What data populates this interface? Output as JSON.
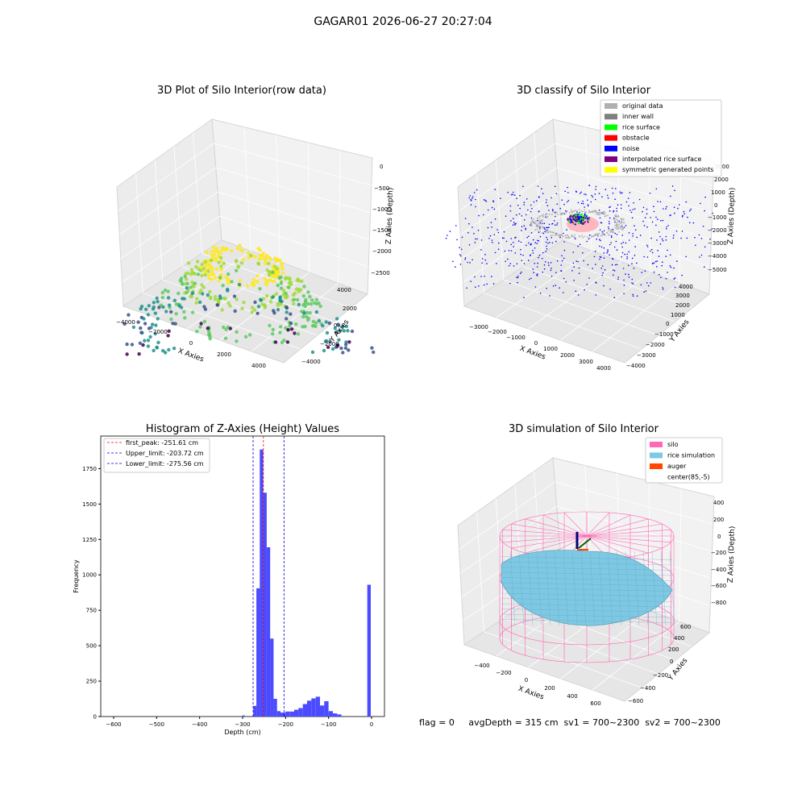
{
  "figure_title": "GAGAR01 2026-06-27 20:27:04",
  "colors": {
    "axis_gray": "#f2f2f2",
    "axis_gray_dark": "#e6e6e6",
    "hist_bar": "#4b4bff",
    "peak_line": "#ff0000",
    "limit_line": "#0000cc",
    "silo": "#ff69b4",
    "rice": "#7ec8e3",
    "auger": "#ff4500"
  },
  "panel1": {
    "title": "3D Plot of Silo Interior(row data)",
    "xlabel": "X Axies",
    "ylabel": "Y Axies",
    "zlabel": "Z Axies (Depth)",
    "xticks": [
      "−4000",
      "−2000",
      "0",
      "2000",
      "4000"
    ],
    "yticks": [
      "−4000",
      "−2000",
      "0",
      "2000",
      "4000"
    ],
    "zticks": [
      "0",
      "−500",
      "−1000",
      "−1500",
      "−2000",
      "−2500"
    ]
  },
  "panel2": {
    "title": "3D classify of Silo Interior",
    "xlabel": "X Axies",
    "ylabel": "Y Axies",
    "zlabel": "Z Axies (Depth)",
    "xticks": [
      "−3000",
      "−2000",
      "−1000",
      "0",
      "1000",
      "2000",
      "3000",
      "4000"
    ],
    "yticks": [
      "−4000",
      "−3000",
      "−2000",
      "−1000",
      "0",
      "1000",
      "2000",
      "3000",
      "4000"
    ],
    "zticks": [
      "3000",
      "2000",
      "1000",
      "0",
      "−1000",
      "−2000",
      "−3000",
      "−4000",
      "−5000"
    ],
    "legend": [
      {
        "label": "original data",
        "color": "#b0b0b0"
      },
      {
        "label": "inner wall",
        "color": "#808080"
      },
      {
        "label": "rice surface",
        "color": "#00ff00"
      },
      {
        "label": "obstacle",
        "color": "#ff0000"
      },
      {
        "label": "noise",
        "color": "#0000ff"
      },
      {
        "label": "interpolated rice surface",
        "color": "#800080"
      },
      {
        "label": "symmetric generated points",
        "color": "#ffff00"
      }
    ]
  },
  "panel3": {
    "title": "3D simulation of Silo Interior",
    "xlabel": "X Axies",
    "ylabel": "Y Axies",
    "zlabel": "Z Axies (Depth)",
    "xticks": [
      "−400",
      "−200",
      "0",
      "200",
      "400",
      "600"
    ],
    "yticks": [
      "−600",
      "−400",
      "−200",
      "0",
      "200",
      "400",
      "600"
    ],
    "zticks": [
      "400",
      "200",
      "0",
      "−200",
      "−400",
      "−600",
      "−800"
    ],
    "legend": [
      {
        "label": "silo",
        "color": "#ff69b4"
      },
      {
        "label": "rice simulation",
        "color": "#7ec8e3"
      },
      {
        "label": "auger",
        "color": "#ff4500"
      },
      {
        "label": "center(85,-5)",
        "color": "none"
      }
    ]
  },
  "status_line": "flag = 0     avgDepth = 315 cm  sv1 = 700~2300  sv2 = 700~2300",
  "chart_data": [
    {
      "type": "scatter",
      "title": "3D Plot of Silo Interior(row data)",
      "xlabel": "X Axies",
      "ylabel": "Y Axies",
      "zlabel": "Z Axies (Depth)",
      "xlim": [
        -4000,
        4000
      ],
      "ylim": [
        -4000,
        4000
      ],
      "zlim": [
        -2700,
        0
      ],
      "colormap": "viridis (by depth)"
    },
    {
      "type": "scatter",
      "title": "3D classify of Silo Interior",
      "xlabel": "X Axies",
      "ylabel": "Y Axies",
      "zlabel": "Z Axies (Depth)",
      "xlim": [
        -3000,
        4000
      ],
      "ylim": [
        -4000,
        4000
      ],
      "zlim": [
        -5000,
        3000
      ],
      "series": [
        {
          "name": "original data"
        },
        {
          "name": "inner wall"
        },
        {
          "name": "rice surface"
        },
        {
          "name": "obstacle"
        },
        {
          "name": "noise"
        },
        {
          "name": "interpolated rice surface"
        },
        {
          "name": "symmetric generated points"
        }
      ],
      "legend_position": "top-right"
    },
    {
      "type": "bar",
      "title": "Histogram of Z-Axies (Height) Values",
      "xlabel": "Depth (cm)",
      "ylabel": "Frequency",
      "xlim": [
        -630,
        30
      ],
      "ylim": [
        0,
        1980
      ],
      "xticks": [
        -600,
        -500,
        -400,
        -300,
        -200,
        -100,
        0
      ],
      "yticks": [
        0,
        250,
        500,
        750,
        1000,
        1250,
        1500,
        1750
      ],
      "bin_width": 10,
      "bins": [
        {
          "x0": -300,
          "value": 8
        },
        {
          "x0": -290,
          "value": 0
        },
        {
          "x0": -280,
          "value": 75
        },
        {
          "x0": -270,
          "value": 905
        },
        {
          "x0": -260,
          "value": 1885
        },
        {
          "x0": -250,
          "value": 1580
        },
        {
          "x0": -240,
          "value": 1195
        },
        {
          "x0": -230,
          "value": 550
        },
        {
          "x0": -220,
          "value": 125
        },
        {
          "x0": -210,
          "value": 38
        },
        {
          "x0": -200,
          "value": 28
        },
        {
          "x0": -190,
          "value": 35
        },
        {
          "x0": -180,
          "value": 35
        },
        {
          "x0": -170,
          "value": 48
        },
        {
          "x0": -160,
          "value": 60
        },
        {
          "x0": -150,
          "value": 88
        },
        {
          "x0": -140,
          "value": 112
        },
        {
          "x0": -130,
          "value": 128
        },
        {
          "x0": -120,
          "value": 140
        },
        {
          "x0": -110,
          "value": 78
        },
        {
          "x0": -100,
          "value": 108
        },
        {
          "x0": -90,
          "value": 38
        },
        {
          "x0": -80,
          "value": 22
        },
        {
          "x0": -70,
          "value": 15
        },
        {
          "x0": -60,
          "value": 930
        }
      ],
      "lines": [
        {
          "name": "first_peak: -251.61 cm",
          "x": -251.61,
          "color": "#ff0000"
        },
        {
          "name": "Upper_limit: -203.72 cm",
          "x": -203.72,
          "color": "#0000cc"
        },
        {
          "name": "Lower_limit: -275.56 cm",
          "x": -275.56,
          "color": "#0000cc"
        }
      ],
      "legend_position": "top-left"
    },
    {
      "type": "surface",
      "title": "3D simulation of Silo Interior",
      "xlabel": "X Axies",
      "ylabel": "Y Axies",
      "zlabel": "Z Axies (Depth)",
      "xlim": [
        -500,
        700
      ],
      "ylim": [
        -700,
        700
      ],
      "zlim": [
        -900,
        450
      ],
      "series": [
        {
          "name": "silo"
        },
        {
          "name": "rice simulation"
        },
        {
          "name": "auger"
        },
        {
          "name": "center(85,-5)"
        }
      ],
      "legend_position": "top-right"
    }
  ]
}
